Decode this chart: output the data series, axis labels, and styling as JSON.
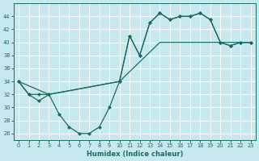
{
  "xlabel": "Humidex (Indice chaleur)",
  "bg_color": "#c8e8ef",
  "grid_color": "#b0d8e0",
  "line_color": "#1a6b62",
  "curve1_x": [
    0,
    1,
    2,
    3,
    4,
    5,
    6,
    7,
    8,
    9,
    10,
    11,
    12,
    13,
    14,
    15,
    16,
    17,
    18,
    19,
    20,
    21,
    22,
    23
  ],
  "curve1_y": [
    34,
    32,
    31,
    32,
    29,
    27,
    26,
    26,
    27,
    30,
    34,
    41,
    38,
    43,
    44.5,
    43.5,
    44,
    44,
    44.5,
    43.5,
    40,
    39.5,
    40,
    40
  ],
  "curve2_x": [
    0,
    1,
    2,
    3,
    10,
    11,
    12,
    13,
    14,
    15,
    16,
    17,
    18,
    19,
    20,
    21,
    22,
    23
  ],
  "curve2_y": [
    34,
    32,
    32,
    32,
    34,
    41,
    38,
    43,
    44.5,
    43.5,
    44,
    44,
    44.5,
    43.5,
    40,
    39.5,
    40,
    40
  ],
  "curve3_x": [
    0,
    3,
    10,
    14,
    20,
    22,
    23
  ],
  "curve3_y": [
    34,
    32,
    34,
    40,
    40,
    40,
    40
  ],
  "xlim": [
    -0.5,
    23.5
  ],
  "ylim": [
    25.0,
    46.0
  ],
  "yticks": [
    26,
    28,
    30,
    32,
    34,
    36,
    38,
    40,
    42,
    44
  ],
  "xticks": [
    0,
    1,
    2,
    3,
    4,
    5,
    6,
    7,
    8,
    9,
    10,
    11,
    12,
    13,
    14,
    15,
    16,
    17,
    18,
    19,
    20,
    21,
    22,
    23
  ],
  "tick_fontsize": 4.8,
  "xlabel_fontsize": 6.0
}
